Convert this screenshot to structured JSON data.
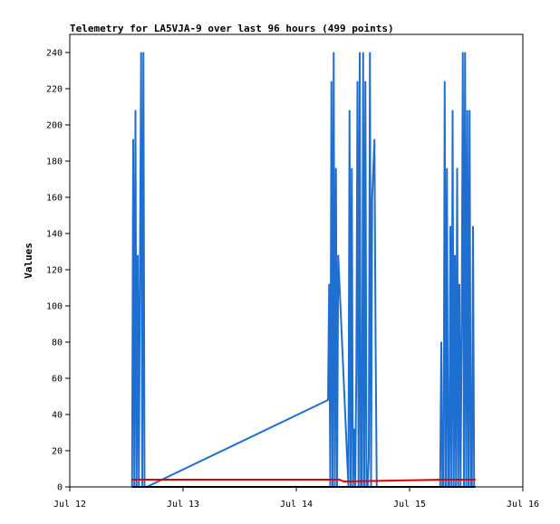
{
  "chart_data": {
    "type": "line",
    "title": "Telemetry for LA5VJA-9 over last 96 hours (499 points)",
    "ylabel": "Values",
    "xlabel": "",
    "x_tick_labels": [
      "Jul 12",
      "Jul 13",
      "Jul 14",
      "Jul 15",
      "Jul 16"
    ],
    "x_range_days": [
      12,
      16
    ],
    "ylim": [
      0,
      250
    ],
    "y_ticks": [
      0,
      20,
      40,
      60,
      80,
      100,
      120,
      140,
      160,
      180,
      200,
      220,
      240
    ],
    "grid": false,
    "series": [
      {
        "name": "",
        "color": "#1f6fd0",
        "x": [
          12.55,
          12.56,
          12.57,
          12.58,
          12.59,
          12.6,
          12.61,
          12.62,
          12.63,
          12.64,
          12.65,
          12.66,
          12.67,
          12.68,
          14.28,
          14.29,
          14.3,
          14.31,
          14.32,
          14.33,
          14.34,
          14.35,
          14.36,
          14.37,
          14.46,
          14.47,
          14.48,
          14.49,
          14.5,
          14.51,
          14.52,
          14.53,
          14.54,
          14.55,
          14.56,
          14.57,
          14.58,
          14.59,
          14.6,
          14.61,
          14.62,
          14.63,
          14.64,
          14.65,
          14.66,
          14.67,
          14.68,
          14.69,
          14.7,
          14.71,
          14.72,
          14.73,
          14.74,
          15.27,
          15.28,
          15.29,
          15.3,
          15.31,
          15.32,
          15.33,
          15.34,
          15.35,
          15.36,
          15.37,
          15.38,
          15.39,
          15.4,
          15.41,
          15.42,
          15.43,
          15.44,
          15.45,
          15.46,
          15.47,
          15.48,
          15.49,
          15.5,
          15.51,
          15.52,
          15.53,
          15.54,
          15.55,
          15.56,
          15.57,
          15.58
        ],
        "values": [
          0,
          192,
          0,
          208,
          0,
          128,
          0,
          128,
          240,
          0,
          240,
          0,
          0,
          0,
          48,
          112,
          0,
          224,
          0,
          240,
          0,
          176,
          0,
          128,
          0,
          208,
          0,
          176,
          0,
          32,
          0,
          64,
          224,
          0,
          240,
          0,
          0,
          240,
          0,
          224,
          0,
          0,
          16,
          240,
          0,
          160,
          176,
          192,
          80,
          0,
          0,
          0,
          0,
          0,
          80,
          0,
          0,
          224,
          0,
          176,
          0,
          0,
          144,
          0,
          208,
          0,
          128,
          0,
          176,
          0,
          112,
          0,
          88,
          240,
          0,
          240,
          0,
          208,
          0,
          208,
          0,
          0,
          144,
          0,
          0
        ]
      },
      {
        "name": "",
        "color": "#e00000",
        "x": [
          12.55,
          14.33,
          14.38,
          14.42,
          15.3,
          15.35,
          15.4,
          15.58
        ],
        "values": [
          4,
          4,
          4,
          3,
          4,
          4,
          4,
          4
        ]
      },
      {
        "name": "",
        "color": "#000000",
        "x": [
          12.55,
          15.58
        ],
        "values": [
          0,
          0
        ]
      }
    ]
  }
}
